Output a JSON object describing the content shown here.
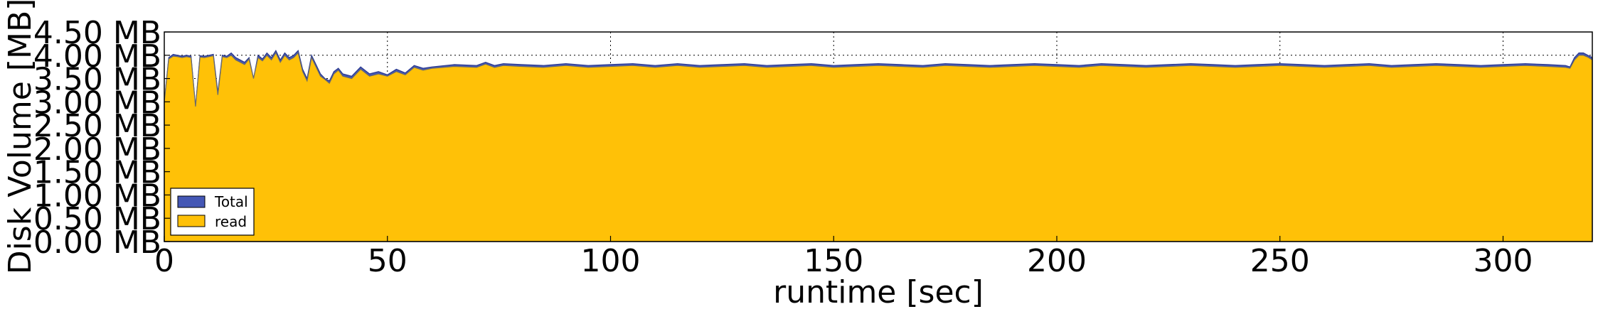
{
  "chart_data": {
    "type": "area",
    "xlabel": "runtime [sec]",
    "ylabel": "Disk Volume [MB]",
    "xlim": [
      0,
      320
    ],
    "ylim": [
      0,
      4.5
    ],
    "x_ticks": [
      0,
      50,
      100,
      150,
      200,
      250,
      300
    ],
    "x_tick_labels": [
      "0",
      "50",
      "100",
      "150",
      "200",
      "250",
      "300"
    ],
    "y_ticks": [
      0,
      0.5,
      1,
      1.5,
      2,
      2.5,
      3,
      3.5,
      4,
      4.5
    ],
    "y_tick_labels": [
      "0.00 MB",
      "0.50 MB",
      "1.00 MB",
      "1.50 MB",
      "2.00 MB",
      "2.50 MB",
      "3.00 MB",
      "3.50 MB",
      "4.00 MB",
      "4.50 MB"
    ],
    "grid": true,
    "legend_position": "lower-left",
    "x": [
      0,
      1,
      2,
      3,
      4,
      5,
      6,
      7,
      8,
      9,
      10,
      11,
      12,
      13,
      14,
      15,
      16,
      17,
      18,
      19,
      20,
      21,
      22,
      23,
      24,
      25,
      26,
      27,
      28,
      29,
      30,
      31,
      32,
      33,
      34,
      35,
      36,
      37,
      38,
      39,
      40,
      42,
      44,
      46,
      48,
      50,
      52,
      54,
      56,
      58,
      60,
      65,
      70,
      72,
      74,
      76,
      80,
      85,
      90,
      95,
      100,
      105,
      110,
      115,
      120,
      125,
      130,
      135,
      140,
      145,
      150,
      155,
      160,
      165,
      170,
      175,
      180,
      185,
      190,
      195,
      200,
      205,
      210,
      215,
      220,
      225,
      230,
      235,
      240,
      245,
      250,
      255,
      260,
      265,
      270,
      275,
      280,
      285,
      290,
      295,
      300,
      305,
      310,
      314,
      315,
      316,
      317,
      318,
      319,
      320
    ],
    "series": [
      {
        "name": "Total",
        "color": "#4457b5",
        "values": [
          3.0,
          3.95,
          4.02,
          4.0,
          3.98,
          4.0,
          3.98,
          2.9,
          3.99,
          3.98,
          4.0,
          4.02,
          3.2,
          4.0,
          3.98,
          4.05,
          3.95,
          3.9,
          3.85,
          3.95,
          3.5,
          4.0,
          3.92,
          4.05,
          3.95,
          4.1,
          3.9,
          4.05,
          3.95,
          4.0,
          4.1,
          3.7,
          3.5,
          4.0,
          3.8,
          3.6,
          3.5,
          3.45,
          3.65,
          3.72,
          3.6,
          3.55,
          3.75,
          3.6,
          3.65,
          3.58,
          3.7,
          3.62,
          3.78,
          3.72,
          3.75,
          3.8,
          3.78,
          3.85,
          3.78,
          3.82,
          3.8,
          3.78,
          3.82,
          3.78,
          3.8,
          3.82,
          3.78,
          3.82,
          3.78,
          3.8,
          3.82,
          3.78,
          3.8,
          3.82,
          3.78,
          3.8,
          3.82,
          3.8,
          3.78,
          3.82,
          3.8,
          3.78,
          3.8,
          3.82,
          3.8,
          3.78,
          3.82,
          3.8,
          3.78,
          3.8,
          3.82,
          3.8,
          3.78,
          3.8,
          3.82,
          3.8,
          3.78,
          3.8,
          3.82,
          3.78,
          3.8,
          3.82,
          3.8,
          3.78,
          3.8,
          3.82,
          3.8,
          3.78,
          3.75,
          3.95,
          4.05,
          4.05,
          4.0,
          3.95
        ]
      },
      {
        "name": "read",
        "color": "#ffc107",
        "values": [
          3.0,
          3.92,
          3.98,
          3.97,
          3.95,
          3.97,
          3.95,
          2.9,
          3.96,
          3.95,
          3.97,
          3.99,
          3.15,
          3.97,
          3.95,
          4.0,
          3.9,
          3.85,
          3.8,
          3.92,
          3.5,
          3.95,
          3.88,
          4.0,
          3.9,
          4.05,
          3.85,
          4.0,
          3.9,
          3.95,
          4.05,
          3.65,
          3.45,
          3.95,
          3.75,
          3.55,
          3.48,
          3.4,
          3.6,
          3.68,
          3.55,
          3.5,
          3.7,
          3.55,
          3.6,
          3.55,
          3.65,
          3.58,
          3.74,
          3.68,
          3.72,
          3.76,
          3.74,
          3.81,
          3.74,
          3.78,
          3.76,
          3.74,
          3.78,
          3.74,
          3.76,
          3.78,
          3.74,
          3.78,
          3.74,
          3.76,
          3.78,
          3.74,
          3.76,
          3.78,
          3.74,
          3.76,
          3.78,
          3.76,
          3.74,
          3.78,
          3.76,
          3.74,
          3.76,
          3.78,
          3.76,
          3.74,
          3.78,
          3.76,
          3.74,
          3.76,
          3.78,
          3.76,
          3.74,
          3.76,
          3.78,
          3.76,
          3.74,
          3.76,
          3.78,
          3.74,
          3.76,
          3.78,
          3.76,
          3.74,
          3.76,
          3.78,
          3.76,
          3.74,
          3.72,
          3.9,
          4.0,
          4.0,
          3.96,
          3.9
        ]
      }
    ]
  }
}
